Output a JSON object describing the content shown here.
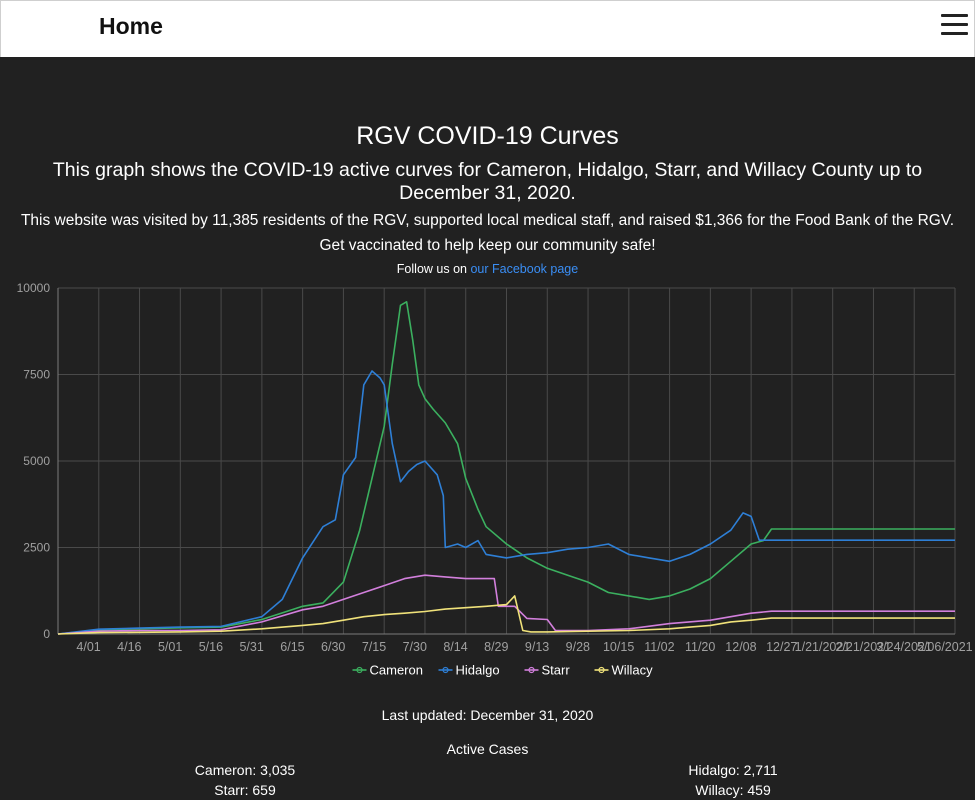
{
  "header": {
    "home_label": "Home",
    "menu_icon": "hamburger-menu-icon"
  },
  "intro": {
    "title": "RGV COVID-19 Curves",
    "subtitle": "This graph shows the COVID-19 active curves for Cameron, Hidalgo, Starr, and Willacy County up to December 31, 2020.",
    "visits": "This website was visited by 11,385 residents of the RGV, supported local medical staff, and raised $1,366 for the Food Bank of the RGV.",
    "vaccine": "Get vaccinated to help keep our community safe!",
    "follow_prefix": "Follow us on",
    "facebook_link": "our Facebook page"
  },
  "chart_data": {
    "type": "line",
    "ylim": [
      0,
      10000
    ],
    "yticks": [
      0,
      2500,
      5000,
      7500,
      10000
    ],
    "xticks": [
      "4/01",
      "4/16",
      "5/01",
      "5/16",
      "5/31",
      "6/15",
      "6/30",
      "7/15",
      "7/30",
      "8/14",
      "8/29",
      "9/13",
      "9/28",
      "10/15",
      "11/02",
      "11/20",
      "12/08",
      "12/27",
      "1/21/2021",
      "2/21/2021",
      "3/24/2021",
      "5/06/2021"
    ],
    "grid": true,
    "legend_position": "bottom",
    "series": [
      {
        "name": "Cameron",
        "color": "#3bb05f",
        "points": [
          [
            0,
            0
          ],
          [
            1,
            120
          ],
          [
            2,
            150
          ],
          [
            3,
            180
          ],
          [
            4,
            200
          ],
          [
            5,
            420
          ],
          [
            6,
            800
          ],
          [
            6.5,
            900
          ],
          [
            7,
            1500
          ],
          [
            7.4,
            3000
          ],
          [
            7.7,
            4500
          ],
          [
            8,
            6000
          ],
          [
            8.2,
            7800
          ],
          [
            8.4,
            9500
          ],
          [
            8.55,
            9600
          ],
          [
            8.7,
            8500
          ],
          [
            8.85,
            7200
          ],
          [
            9,
            6800
          ],
          [
            9.2,
            6500
          ],
          [
            9.5,
            6100
          ],
          [
            9.8,
            5500
          ],
          [
            10,
            4500
          ],
          [
            10.3,
            3600
          ],
          [
            10.5,
            3100
          ],
          [
            11,
            2600
          ],
          [
            11.5,
            2200
          ],
          [
            12,
            1900
          ],
          [
            12.5,
            1700
          ],
          [
            13,
            1500
          ],
          [
            13.5,
            1200
          ],
          [
            14,
            1100
          ],
          [
            14.5,
            1000
          ],
          [
            15,
            1100
          ],
          [
            15.5,
            1300
          ],
          [
            16,
            1600
          ],
          [
            16.5,
            2100
          ],
          [
            17,
            2600
          ],
          [
            17.3,
            2700
          ],
          [
            17.5,
            3035
          ],
          [
            22,
            3035
          ]
        ]
      },
      {
        "name": "Hidalgo",
        "color": "#2e7fd6",
        "points": [
          [
            0,
            0
          ],
          [
            1,
            140
          ],
          [
            2,
            170
          ],
          [
            3,
            200
          ],
          [
            4,
            220
          ],
          [
            5,
            500
          ],
          [
            5.5,
            1000
          ],
          [
            6,
            2200
          ],
          [
            6.5,
            3100
          ],
          [
            6.8,
            3300
          ],
          [
            7,
            4600
          ],
          [
            7.3,
            5100
          ],
          [
            7.5,
            7200
          ],
          [
            7.7,
            7600
          ],
          [
            7.9,
            7400
          ],
          [
            8,
            7200
          ],
          [
            8.2,
            5500
          ],
          [
            8.4,
            4400
          ],
          [
            8.6,
            4700
          ],
          [
            8.8,
            4900
          ],
          [
            9,
            5000
          ],
          [
            9.3,
            4600
          ],
          [
            9.45,
            4000
          ],
          [
            9.5,
            2500
          ],
          [
            9.8,
            2600
          ],
          [
            10,
            2500
          ],
          [
            10.3,
            2700
          ],
          [
            10.5,
            2300
          ],
          [
            11,
            2200
          ],
          [
            11.5,
            2300
          ],
          [
            12,
            2350
          ],
          [
            12.5,
            2450
          ],
          [
            13,
            2500
          ],
          [
            13.5,
            2600
          ],
          [
            14,
            2300
          ],
          [
            14.5,
            2200
          ],
          [
            15,
            2100
          ],
          [
            15.5,
            2300
          ],
          [
            16,
            2600
          ],
          [
            16.5,
            3000
          ],
          [
            16.8,
            3500
          ],
          [
            17,
            3400
          ],
          [
            17.2,
            2711
          ],
          [
            22,
            2711
          ]
        ]
      },
      {
        "name": "Starr",
        "color": "#d27fdc",
        "points": [
          [
            0,
            0
          ],
          [
            1,
            80
          ],
          [
            2,
            100
          ],
          [
            3,
            100
          ],
          [
            4,
            120
          ],
          [
            5,
            350
          ],
          [
            6,
            700
          ],
          [
            6.5,
            800
          ],
          [
            7,
            1000
          ],
          [
            7.5,
            1200
          ],
          [
            8,
            1400
          ],
          [
            8.5,
            1600
          ],
          [
            9,
            1700
          ],
          [
            9.5,
            1650
          ],
          [
            10,
            1600
          ],
          [
            10.7,
            1600
          ],
          [
            10.8,
            800
          ],
          [
            11.2,
            800
          ],
          [
            11.5,
            450
          ],
          [
            12,
            420
          ],
          [
            12.2,
            100
          ],
          [
            13,
            100
          ],
          [
            14,
            150
          ],
          [
            15,
            300
          ],
          [
            16,
            400
          ],
          [
            16.5,
            500
          ],
          [
            17,
            600
          ],
          [
            17.5,
            659
          ],
          [
            22,
            659
          ]
        ]
      },
      {
        "name": "Willacy",
        "color": "#f0e27a",
        "points": [
          [
            0,
            0
          ],
          [
            1,
            40
          ],
          [
            2,
            50
          ],
          [
            3,
            60
          ],
          [
            4,
            80
          ],
          [
            5,
            150
          ],
          [
            6,
            250
          ],
          [
            6.5,
            300
          ],
          [
            7,
            400
          ],
          [
            7.5,
            500
          ],
          [
            8,
            560
          ],
          [
            8.5,
            600
          ],
          [
            9,
            650
          ],
          [
            9.5,
            720
          ],
          [
            10,
            760
          ],
          [
            10.5,
            800
          ],
          [
            11,
            850
          ],
          [
            11.2,
            1100
          ],
          [
            11.4,
            100
          ],
          [
            11.6,
            60
          ],
          [
            12,
            60
          ],
          [
            13,
            80
          ],
          [
            14,
            100
          ],
          [
            15,
            150
          ],
          [
            15.5,
            200
          ],
          [
            16,
            250
          ],
          [
            16.5,
            350
          ],
          [
            17,
            400
          ],
          [
            17.5,
            459
          ],
          [
            22,
            459
          ]
        ]
      }
    ]
  },
  "footer": {
    "updated": "Last updated: December 31, 2020",
    "cases_title": "Active Cases",
    "cameron": "Cameron: 3,035",
    "hidalgo": "Hidalgo: 2,711",
    "starr": "Starr: 659",
    "willacy": "Willacy: 459"
  }
}
